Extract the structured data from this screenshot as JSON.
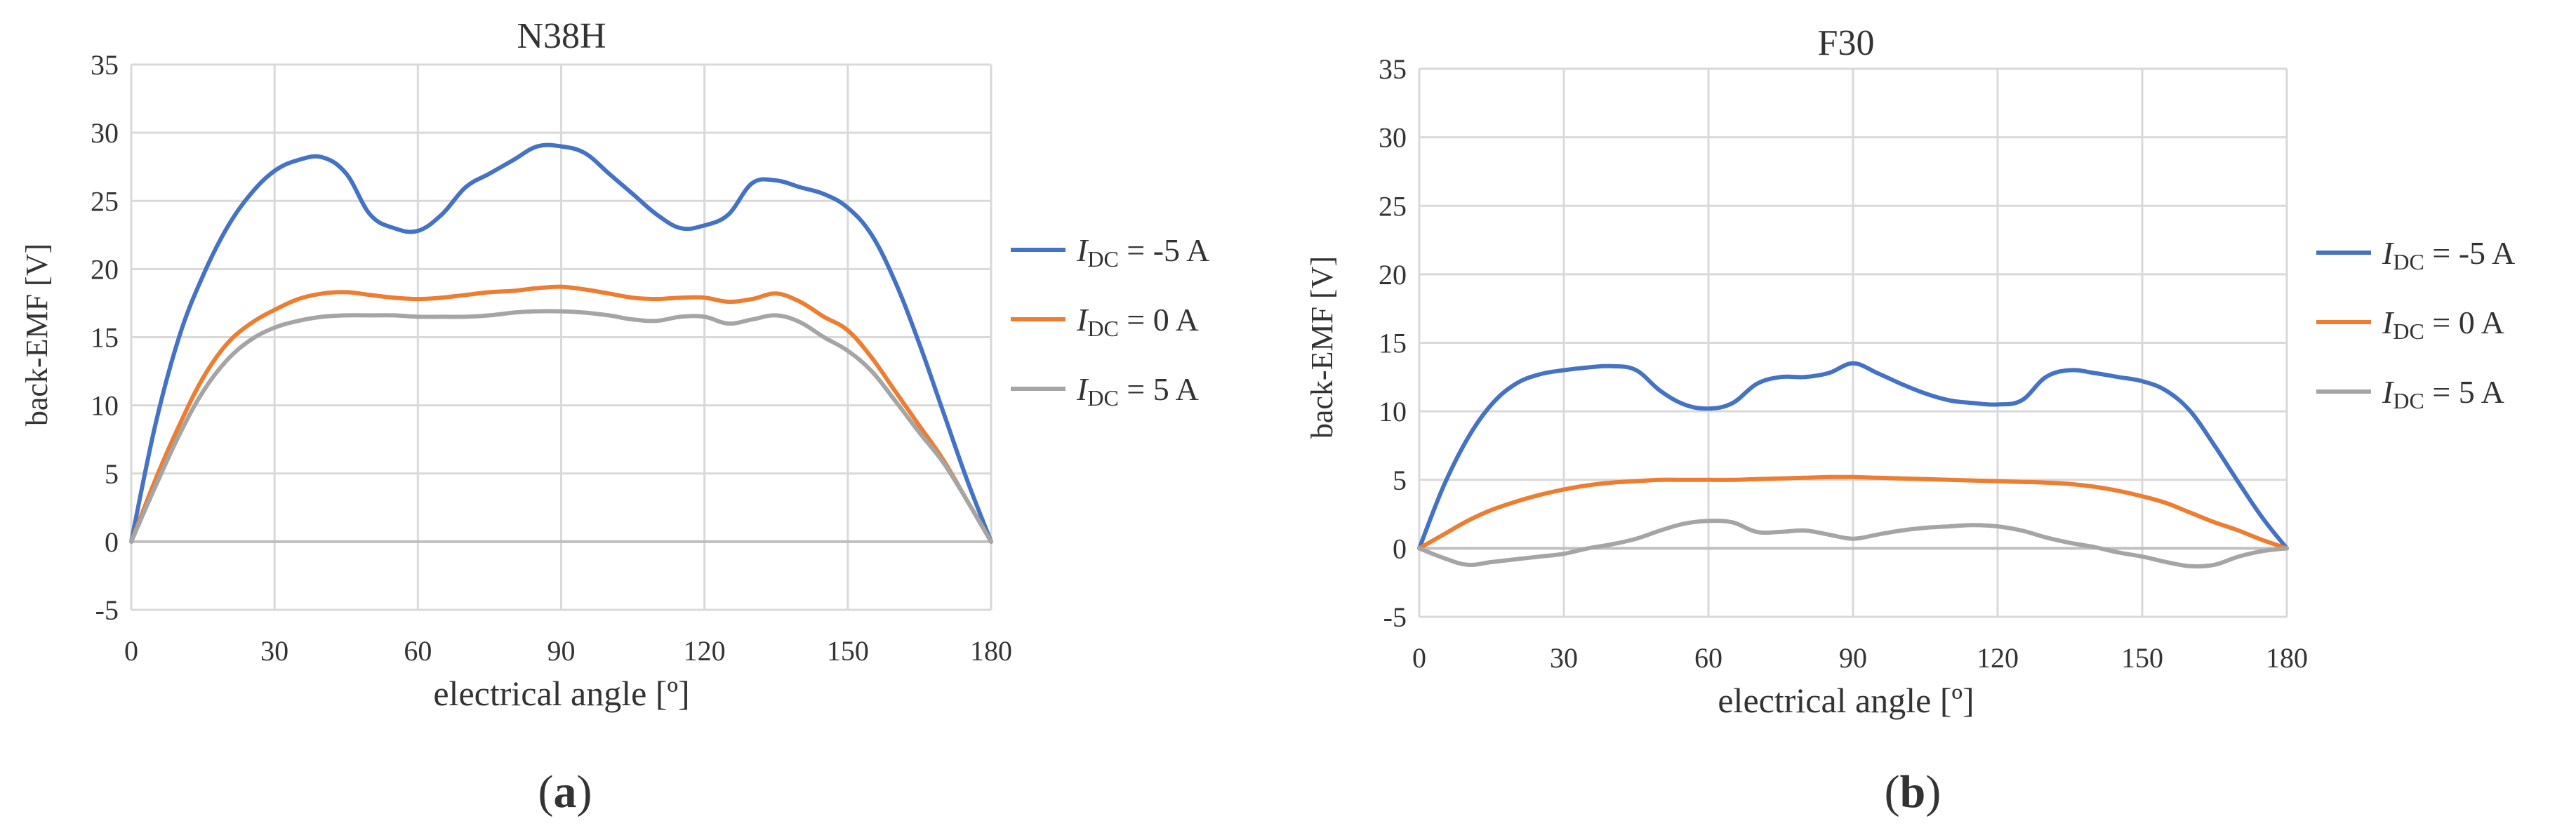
{
  "figure": {
    "panels": [
      {
        "caption_open": "(",
        "caption_letter": "a",
        "caption_close": ")"
      },
      {
        "caption_open": "(",
        "caption_letter": "b",
        "caption_close": ")"
      }
    ]
  },
  "colors": {
    "series_blue": "#4472C4",
    "series_orange": "#ED7D31",
    "series_gray": "#A5A5A5",
    "grid": "#D9D9D9",
    "text": "#333333"
  },
  "chart_data": [
    {
      "type": "line",
      "title": "N38H",
      "xlabel": "electrical angle [º]",
      "ylabel": "back-EMF [V]",
      "xlim": [
        0,
        180
      ],
      "ylim": [
        -5,
        35
      ],
      "xticks": [
        0,
        30,
        60,
        90,
        120,
        150,
        180
      ],
      "yticks": [
        -5,
        0,
        5,
        10,
        15,
        20,
        25,
        30,
        35
      ],
      "grid": true,
      "legend_position": "right",
      "series": [
        {
          "name": "I_DC = -5 A",
          "legend": {
            "sym": "I",
            "sub": "DC",
            "rest": " = -5 A"
          },
          "color": "#4472C4",
          "x": [
            0,
            5,
            10,
            15,
            20,
            25,
            30,
            35,
            40,
            45,
            50,
            55,
            60,
            65,
            70,
            75,
            80,
            85,
            90,
            95,
            100,
            105,
            110,
            115,
            120,
            125,
            130,
            135,
            140,
            145,
            150,
            155,
            160,
            165,
            170,
            175,
            180
          ],
          "y": [
            0,
            8.5,
            15,
            19.5,
            23,
            25.5,
            27.2,
            28,
            28.2,
            27,
            24,
            23,
            22.8,
            24,
            26,
            27,
            28,
            29,
            29,
            28.5,
            27,
            25.5,
            24,
            23,
            23.2,
            24,
            26.3,
            26.5,
            26,
            25.5,
            24.5,
            22.5,
            19,
            14.5,
            9.5,
            4.5,
            0
          ]
        },
        {
          "name": "I_DC = 0 A",
          "legend": {
            "sym": "I",
            "sub": "DC",
            "rest": " = 0 A"
          },
          "color": "#ED7D31",
          "x": [
            0,
            5,
            10,
            15,
            20,
            25,
            30,
            35,
            40,
            45,
            50,
            55,
            60,
            65,
            70,
            75,
            80,
            85,
            90,
            95,
            100,
            105,
            110,
            115,
            120,
            125,
            130,
            135,
            140,
            145,
            150,
            155,
            160,
            165,
            170,
            175,
            180
          ],
          "y": [
            0,
            4.5,
            8.5,
            12,
            14.5,
            16,
            17,
            17.8,
            18.2,
            18.3,
            18.1,
            17.9,
            17.8,
            17.9,
            18.1,
            18.3,
            18.4,
            18.6,
            18.7,
            18.5,
            18.2,
            17.9,
            17.8,
            17.9,
            17.9,
            17.6,
            17.8,
            18.2,
            17.6,
            16.5,
            15.5,
            13.5,
            11,
            8.5,
            6,
            3,
            0
          ]
        },
        {
          "name": "I_DC = 5 A",
          "legend": {
            "sym": "I",
            "sub": "DC",
            "rest": " = 5 A"
          },
          "color": "#A5A5A5",
          "x": [
            0,
            5,
            10,
            15,
            20,
            25,
            30,
            35,
            40,
            45,
            50,
            55,
            60,
            65,
            70,
            75,
            80,
            85,
            90,
            95,
            100,
            105,
            110,
            115,
            120,
            125,
            130,
            135,
            140,
            145,
            150,
            155,
            160,
            165,
            170,
            175,
            180
          ],
          "y": [
            0,
            4,
            7.8,
            11,
            13.3,
            14.8,
            15.7,
            16.2,
            16.5,
            16.6,
            16.6,
            16.6,
            16.5,
            16.5,
            16.5,
            16.6,
            16.8,
            16.9,
            16.9,
            16.8,
            16.6,
            16.3,
            16.2,
            16.5,
            16.5,
            16,
            16.3,
            16.6,
            16.1,
            15,
            14,
            12.5,
            10.3,
            8,
            5.8,
            3,
            0
          ]
        }
      ]
    },
    {
      "type": "line",
      "title": "F30",
      "xlabel": "electrical angle [º]",
      "ylabel": "back-EMF [V]",
      "xlim": [
        0,
        180
      ],
      "ylim": [
        -5,
        35
      ],
      "xticks": [
        0,
        30,
        60,
        90,
        120,
        150,
        180
      ],
      "yticks": [
        -5,
        0,
        5,
        10,
        15,
        20,
        25,
        30,
        35
      ],
      "grid": true,
      "legend_position": "right",
      "series": [
        {
          "name": "I_DC = -5 A",
          "legend": {
            "sym": "I",
            "sub": "DC",
            "rest": " = -5 A"
          },
          "color": "#4472C4",
          "x": [
            0,
            5,
            10,
            15,
            20,
            25,
            30,
            35,
            40,
            45,
            50,
            55,
            60,
            65,
            70,
            75,
            80,
            85,
            90,
            95,
            100,
            105,
            110,
            115,
            120,
            125,
            130,
            135,
            140,
            145,
            150,
            155,
            160,
            165,
            170,
            175,
            180
          ],
          "y": [
            0,
            4.5,
            8,
            10.5,
            12,
            12.7,
            13,
            13.2,
            13.3,
            13,
            11.5,
            10.5,
            10.2,
            10.6,
            12,
            12.5,
            12.5,
            12.8,
            13.5,
            12.8,
            12,
            11.3,
            10.8,
            10.6,
            10.5,
            10.8,
            12.5,
            13,
            12.8,
            12.5,
            12.2,
            11.5,
            10,
            7.5,
            4.8,
            2.2,
            0
          ]
        },
        {
          "name": "I_DC = 0 A",
          "legend": {
            "sym": "I",
            "sub": "DC",
            "rest": " = 0 A"
          },
          "color": "#ED7D31",
          "x": [
            0,
            5,
            10,
            15,
            20,
            25,
            30,
            35,
            40,
            45,
            50,
            55,
            60,
            65,
            70,
            75,
            80,
            85,
            90,
            95,
            100,
            105,
            110,
            115,
            120,
            125,
            130,
            135,
            140,
            145,
            150,
            155,
            160,
            165,
            170,
            175,
            180
          ],
          "y": [
            0,
            1,
            2,
            2.8,
            3.4,
            3.9,
            4.3,
            4.6,
            4.8,
            4.9,
            5,
            5,
            5,
            5,
            5.05,
            5.1,
            5.15,
            5.2,
            5.2,
            5.15,
            5.1,
            5.05,
            5,
            4.95,
            4.9,
            4.85,
            4.8,
            4.7,
            4.5,
            4.2,
            3.8,
            3.3,
            2.6,
            1.9,
            1.3,
            0.6,
            0
          ]
        },
        {
          "name": "I_DC = 5 A",
          "legend": {
            "sym": "I",
            "sub": "DC",
            "rest": " = 5 A"
          },
          "color": "#A5A5A5",
          "x": [
            0,
            5,
            10,
            15,
            20,
            25,
            30,
            35,
            40,
            45,
            50,
            55,
            60,
            65,
            70,
            75,
            80,
            85,
            90,
            95,
            100,
            105,
            110,
            115,
            120,
            125,
            130,
            135,
            140,
            145,
            150,
            155,
            160,
            165,
            170,
            175,
            180
          ],
          "y": [
            0,
            -0.7,
            -1.2,
            -1,
            -0.8,
            -0.6,
            -0.4,
            0,
            0.3,
            0.7,
            1.3,
            1.8,
            2,
            1.9,
            1.2,
            1.2,
            1.3,
            1,
            0.7,
            1,
            1.3,
            1.5,
            1.6,
            1.7,
            1.6,
            1.3,
            0.8,
            0.4,
            0.1,
            -0.3,
            -0.6,
            -1,
            -1.3,
            -1.2,
            -0.6,
            -0.2,
            0
          ]
        }
      ]
    }
  ]
}
